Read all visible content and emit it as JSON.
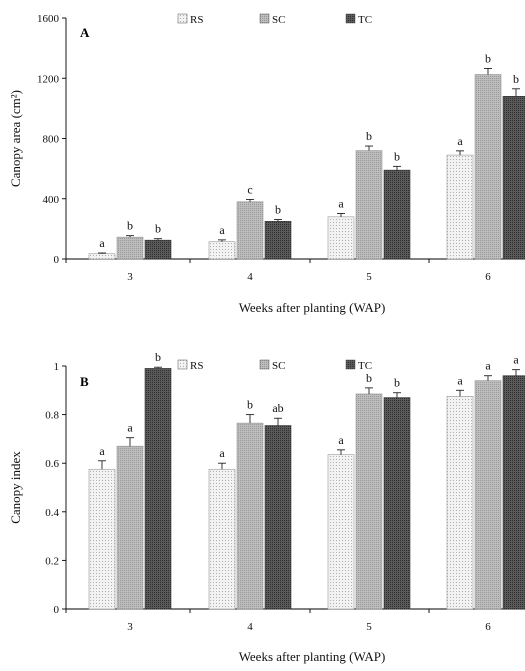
{
  "colors": {
    "RS": "#f2f2f2",
    "SC": "#bdbdbd",
    "TC": "#5a5a5a",
    "RS_pattern": "#b0b0b0",
    "SC_pattern": "#999999",
    "TC_pattern": "#2e2e2e"
  },
  "chart_data": [
    {
      "type": "bar",
      "panel_label": "A",
      "categories": [
        "3",
        "4",
        "5",
        "6"
      ],
      "xlabel": "Weeks after planting (WAP)",
      "ylabel": "Canopy area (cm²)",
      "ylim": [
        0,
        1600
      ],
      "yticks": [
        "0",
        "400",
        "800",
        "1200",
        "1600"
      ],
      "ytick_values": [
        0,
        400,
        800,
        1200,
        1600
      ],
      "legend_position": "top",
      "grid": false,
      "series": [
        {
          "name": "RS",
          "values": [
            35,
            115,
            280,
            690
          ],
          "errors": [
            5,
            12,
            22,
            28
          ],
          "labels": [
            "a",
            "a",
            "a",
            "a"
          ]
        },
        {
          "name": "SC",
          "values": [
            145,
            380,
            720,
            1225
          ],
          "errors": [
            10,
            15,
            30,
            40
          ],
          "labels": [
            "b",
            "c",
            "b",
            "b"
          ]
        },
        {
          "name": "TC",
          "values": [
            125,
            250,
            590,
            1080
          ],
          "errors": [
            10,
            12,
            25,
            50
          ],
          "labels": [
            "b",
            "b",
            "b",
            "b"
          ]
        }
      ]
    },
    {
      "type": "bar",
      "panel_label": "B",
      "categories": [
        "3",
        "4",
        "5",
        "6"
      ],
      "xlabel": "Weeks after planting (WAP)",
      "ylabel": "Canopy index",
      "ylim": [
        0,
        1
      ],
      "yticks": [
        "0",
        "0.2",
        "0.4",
        "0.6",
        "0.8",
        "1"
      ],
      "ytick_values": [
        0,
        0.2,
        0.4,
        0.6,
        0.8,
        1
      ],
      "legend_position": "top",
      "grid": false,
      "series": [
        {
          "name": "RS",
          "values": [
            0.575,
            0.575,
            0.635,
            0.875
          ],
          "errors": [
            0.035,
            0.025,
            0.02,
            0.025
          ],
          "labels": [
            "a",
            "a",
            "a",
            "a"
          ]
        },
        {
          "name": "SC",
          "values": [
            0.67,
            0.765,
            0.885,
            0.94
          ],
          "errors": [
            0.035,
            0.035,
            0.025,
            0.02
          ],
          "labels": [
            "a",
            "b",
            "b",
            "a"
          ]
        },
        {
          "name": "TC",
          "values": [
            0.99,
            0.755,
            0.87,
            0.96
          ],
          "errors": [
            0.005,
            0.03,
            0.02,
            0.025
          ],
          "labels": [
            "b",
            "ab",
            "b",
            "a"
          ]
        }
      ]
    }
  ]
}
